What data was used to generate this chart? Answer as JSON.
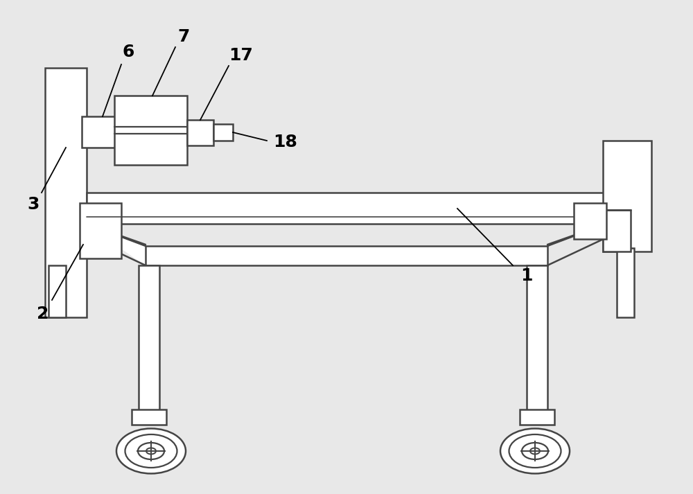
{
  "bg_color": "#e8e8e8",
  "line_color": "#444444",
  "lw": 1.8,
  "fig_w": 10.0,
  "fig_h": 7.13,
  "dpi": 100
}
